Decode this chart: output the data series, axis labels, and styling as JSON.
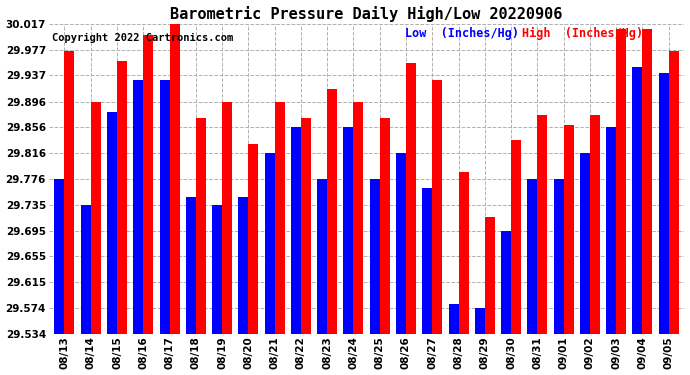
{
  "title": "Barometric Pressure Daily High/Low 20220906",
  "copyright": "Copyright 2022 Cartronics.com",
  "legend_low": "Low  (Inches/Hg)",
  "legend_high": "High  (Inches/Hg)",
  "dates": [
    "08/13",
    "08/14",
    "08/15",
    "08/16",
    "08/17",
    "08/18",
    "08/19",
    "08/20",
    "08/21",
    "08/22",
    "08/23",
    "08/24",
    "08/25",
    "08/26",
    "08/27",
    "08/28",
    "08/29",
    "08/30",
    "08/31",
    "09/01",
    "09/02",
    "09/03",
    "09/04",
    "09/05"
  ],
  "high": [
    29.975,
    29.896,
    29.96,
    30.0,
    30.017,
    29.87,
    29.896,
    29.83,
    29.896,
    29.87,
    29.916,
    29.896,
    29.87,
    29.957,
    29.93,
    29.786,
    29.716,
    29.836,
    29.876,
    29.86,
    29.876,
    30.01,
    30.01,
    29.975
  ],
  "low": [
    29.776,
    29.735,
    29.88,
    29.93,
    29.93,
    29.748,
    29.735,
    29.748,
    29.816,
    29.856,
    29.776,
    29.856,
    29.776,
    29.816,
    29.762,
    29.58,
    29.574,
    29.695,
    29.776,
    29.776,
    29.816,
    29.856,
    29.95,
    29.94
  ],
  "ymin": 29.534,
  "ymax": 30.017,
  "yticks": [
    29.534,
    29.574,
    29.615,
    29.655,
    29.695,
    29.735,
    29.776,
    29.816,
    29.856,
    29.896,
    29.937,
    29.977,
    30.017
  ],
  "bar_color_low": "#0000ff",
  "bar_color_high": "#ff0000",
  "bg_color": "#ffffff",
  "grid_color": "#b0b0b0",
  "title_fontsize": 11,
  "tick_fontsize": 7.5,
  "copyright_fontsize": 7.5
}
